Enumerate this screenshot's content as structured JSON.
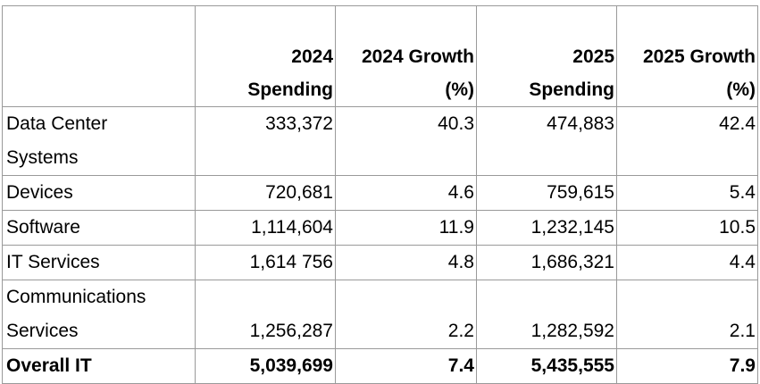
{
  "table": {
    "headers": [
      "",
      "2024 Spending",
      "2024 Growth (%)",
      "2025 Spending",
      "2025 Growth (%)"
    ],
    "header_lines": [
      [],
      [
        "2024",
        "Spending"
      ],
      [
        "2024 Growth",
        "(%)"
      ],
      [
        "2025",
        "Spending"
      ],
      [
        "2025 Growth",
        "(%)"
      ]
    ],
    "rows": [
      {
        "segment_lines": [
          "Data Center",
          "Systems"
        ],
        "values": [
          "333,372",
          "40.3",
          "474,883",
          "42.4"
        ]
      },
      {
        "segment_lines": [
          "Devices"
        ],
        "values": [
          "720,681",
          "4.6",
          "759,615",
          "5.4"
        ]
      },
      {
        "segment_lines": [
          "Software"
        ],
        "values": [
          "1,114,604",
          "11.9",
          "1,232,145",
          "10.5"
        ]
      },
      {
        "segment_lines": [
          "IT Services"
        ],
        "values": [
          "1,614 756",
          "4.8",
          "1,686,321",
          "4.4"
        ]
      },
      {
        "segment_lines": [
          "Communications",
          "Services"
        ],
        "values": [
          "1,256,287",
          "2.2",
          "1,282,592",
          "2.1"
        ]
      },
      {
        "segment_lines": [
          "Overall IT"
        ],
        "values": [
          "5,039,699",
          "7.4",
          "5,435,555",
          "7.9"
        ]
      }
    ]
  }
}
